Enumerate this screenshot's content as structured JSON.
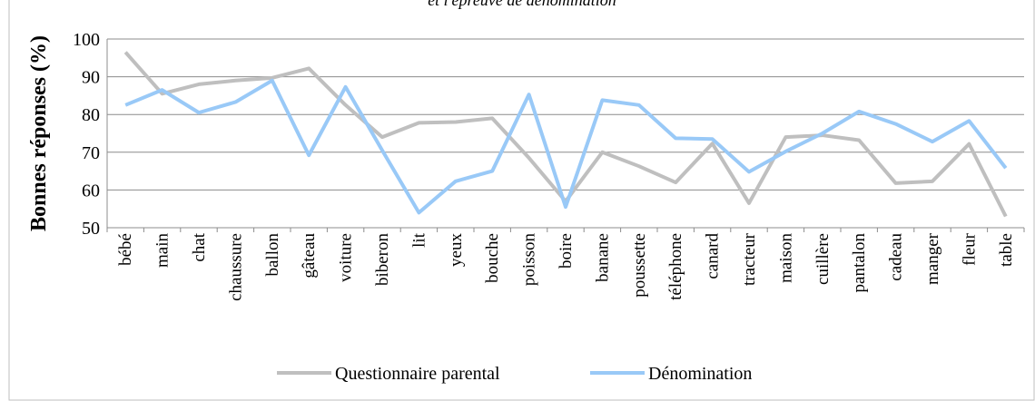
{
  "chart_data": {
    "type": "line",
    "title": "et l'épreuve de dénomination",
    "y_label": "Bonnes réponses (%)",
    "categories": [
      "bébé",
      "main",
      "chat",
      "chaussure",
      "ballon",
      "gâteau",
      "voiture",
      "biberon",
      "lit",
      "yeux",
      "bouche",
      "poisson",
      "boire",
      "banane",
      "poussette",
      "téléphone",
      "canard",
      "tracteur",
      "maison",
      "cuillère",
      "pantalon",
      "cadeau",
      "manger",
      "fleur",
      "table"
    ],
    "series": [
      {
        "name": "Questionnaire parental",
        "color": "#bfbfbf",
        "values": [
          96.5,
          85.5,
          88,
          89,
          89.7,
          92.2,
          82.5,
          74,
          77.8,
          78,
          79,
          68.5,
          57,
          70,
          66.3,
          62,
          72.3,
          56.5,
          74,
          74.5,
          73.2,
          61.8,
          62.3,
          72.2,
          53
        ]
      },
      {
        "name": "Dénomination",
        "color": "#99c9f7",
        "values": [
          82.5,
          86.5,
          80.5,
          83.3,
          89,
          69.2,
          87.3,
          70.5,
          54,
          62.3,
          65,
          85.3,
          55.5,
          83.8,
          82.5,
          73.7,
          73.5,
          64.8,
          70.2,
          75,
          80.8,
          77.5,
          72.8,
          78.3,
          65.8
        ]
      }
    ],
    "ylim": [
      50,
      100
    ],
    "yticks": [
      50,
      60,
      70,
      80,
      90,
      100
    ],
    "grid": true,
    "legend": "bottom"
  }
}
